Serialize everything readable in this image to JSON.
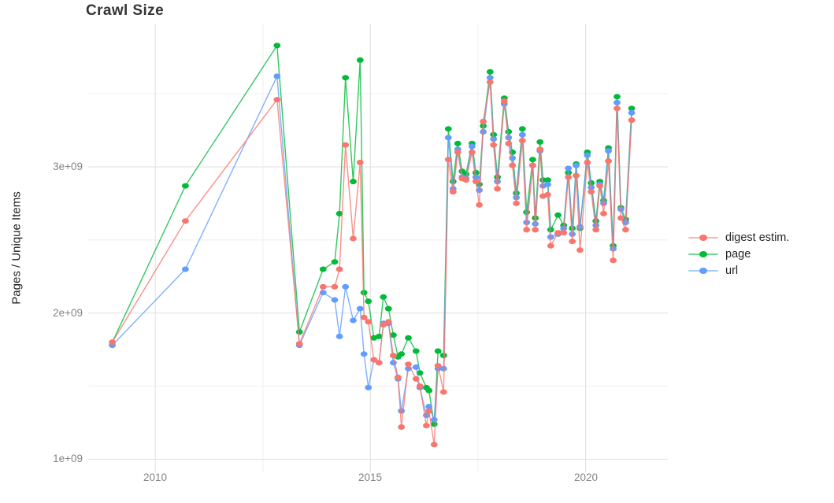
{
  "title": "Crawl Size",
  "axes": {
    "y_label": "Pages / Unique Items",
    "y_ticks": [
      "3e+09",
      "2e+09",
      "1e+09"
    ],
    "x_ticks": [
      "2010",
      "2015",
      "2020"
    ]
  },
  "legend": {
    "items": [
      {
        "label": "digest estim.",
        "color": "#F8766D",
        "key": "digest"
      },
      {
        "label": "page",
        "color": "#00BA38",
        "key": "page"
      },
      {
        "label": "url",
        "color": "#619CFF",
        "key": "url"
      }
    ]
  },
  "chart_data": {
    "type": "line",
    "title": "Crawl Size",
    "xlabel": "",
    "ylabel": "Pages / Unique Items",
    "value_unit": "1e9 items (billions)",
    "x_unit": "year (decimal, one entry per crawl)",
    "x_range": [
      2008.45,
      2021.9
    ],
    "y_range_e9": [
      0.9,
      3.98
    ],
    "x_ticks_years": [
      2010,
      2015,
      2020
    ],
    "x_minor_years": [
      2012.5,
      2017.5
    ],
    "y_ticks_e9": [
      3,
      2,
      1
    ],
    "y_minor_e9": [
      3.5,
      2.5,
      1.5
    ],
    "grid": true,
    "legend_position": "right",
    "series_colors": {
      "digest": "#F8766D",
      "page": "#00BA38",
      "url": "#619CFF"
    },
    "draw_order": [
      "page",
      "url",
      "digest"
    ],
    "points": [
      {
        "year": 2009.0,
        "page": 1.8,
        "url": 1.78,
        "digest": 1.8
      },
      {
        "year": 2010.7,
        "page": 2.87,
        "url": 2.3,
        "digest": 2.63
      },
      {
        "year": 2012.83,
        "page": 3.83,
        "url": 3.62,
        "digest": 3.46
      },
      {
        "year": 2013.35,
        "page": 1.87,
        "url": 1.78,
        "digest": 1.79
      },
      {
        "year": 2013.9,
        "page": 2.3,
        "url": 2.14,
        "digest": 2.18
      },
      {
        "year": 2014.17,
        "page": 2.35,
        "url": 2.09,
        "digest": 2.18
      },
      {
        "year": 2014.28,
        "page": 2.68,
        "url": 1.84,
        "digest": 2.3
      },
      {
        "year": 2014.42,
        "page": 3.61,
        "url": 2.18,
        "digest": 3.15
      },
      {
        "year": 2014.6,
        "page": 2.9,
        "url": 1.95,
        "digest": 2.51
      },
      {
        "year": 2014.76,
        "page": 3.73,
        "url": 2.03,
        "digest": 3.03
      },
      {
        "year": 2014.85,
        "page": 2.14,
        "url": 1.72,
        "digest": 1.97
      },
      {
        "year": 2014.95,
        "page": 2.08,
        "url": 1.49,
        "digest": 1.94
      },
      {
        "year": 2015.08,
        "page": 1.83,
        "url": 1.68,
        "digest": 1.68
      },
      {
        "year": 2015.2,
        "page": 1.84,
        "url": 1.66,
        "digest": 1.66
      },
      {
        "year": 2015.3,
        "page": 2.11,
        "url": 1.93,
        "digest": 1.92
      },
      {
        "year": 2015.42,
        "page": 2.03,
        "url": 1.93,
        "digest": 1.94
      },
      {
        "year": 2015.53,
        "page": 1.85,
        "url": 1.66,
        "digest": 1.71
      },
      {
        "year": 2015.64,
        "page": 1.7,
        "url": 1.55,
        "digest": 1.56
      },
      {
        "year": 2015.72,
        "page": 1.72,
        "url": 1.33,
        "digest": 1.22
      },
      {
        "year": 2015.88,
        "page": 1.83,
        "url": 1.62,
        "digest": 1.65
      },
      {
        "year": 2016.06,
        "page": 1.74,
        "url": 1.63,
        "digest": 1.55
      },
      {
        "year": 2016.15,
        "page": 1.59,
        "url": 1.49,
        "digest": 1.5
      },
      {
        "year": 2016.3,
        "page": 1.49,
        "url": 1.3,
        "digest": 1.23
      },
      {
        "year": 2016.36,
        "page": 1.47,
        "url": 1.36,
        "digest": 1.33
      },
      {
        "year": 2016.48,
        "page": 1.24,
        "url": 1.27,
        "digest": 1.1
      },
      {
        "year": 2016.57,
        "page": 1.74,
        "url": 1.62,
        "digest": 1.64
      },
      {
        "year": 2016.7,
        "page": 1.71,
        "url": 1.62,
        "digest": 1.46
      },
      {
        "year": 2016.81,
        "page": 3.26,
        "url": 3.2,
        "digest": 3.05
      },
      {
        "year": 2016.92,
        "page": 2.9,
        "url": 2.85,
        "digest": 2.83
      },
      {
        "year": 2017.03,
        "page": 3.16,
        "url": 3.12,
        "digest": 3.1
      },
      {
        "year": 2017.13,
        "page": 2.97,
        "url": 2.93,
        "digest": 2.92
      },
      {
        "year": 2017.22,
        "page": 2.95,
        "url": 2.92,
        "digest": 2.91
      },
      {
        "year": 2017.36,
        "page": 3.16,
        "url": 3.14,
        "digest": 3.1
      },
      {
        "year": 2017.45,
        "page": 2.96,
        "url": 2.93,
        "digest": 2.9
      },
      {
        "year": 2017.53,
        "page": 2.88,
        "url": 2.84,
        "digest": 2.74
      },
      {
        "year": 2017.62,
        "page": 3.28,
        "url": 3.24,
        "digest": 3.31
      },
      {
        "year": 2017.78,
        "page": 3.65,
        "url": 3.61,
        "digest": 3.58
      },
      {
        "year": 2017.86,
        "page": 3.22,
        "url": 3.19,
        "digest": 3.15
      },
      {
        "year": 2017.95,
        "page": 2.93,
        "url": 2.9,
        "digest": 2.85
      },
      {
        "year": 2018.11,
        "page": 3.47,
        "url": 3.43,
        "digest": 3.45
      },
      {
        "year": 2018.21,
        "page": 3.24,
        "url": 3.2,
        "digest": 3.16
      },
      {
        "year": 2018.3,
        "page": 3.1,
        "url": 3.06,
        "digest": 3.01
      },
      {
        "year": 2018.39,
        "page": 2.82,
        "url": 2.79,
        "digest": 2.75
      },
      {
        "year": 2018.53,
        "page": 3.26,
        "url": 3.22,
        "digest": 3.18
      },
      {
        "year": 2018.63,
        "page": 2.69,
        "url": 2.62,
        "digest": 2.57
      },
      {
        "year": 2018.77,
        "page": 3.05,
        "url": 3.01,
        "digest": 3.01
      },
      {
        "year": 2018.83,
        "page": 2.65,
        "url": 2.61,
        "digest": 2.57
      },
      {
        "year": 2018.94,
        "page": 3.17,
        "url": 3.11,
        "digest": 3.12
      },
      {
        "year": 2019.01,
        "page": 2.91,
        "url": 2.87,
        "digest": 2.8
      },
      {
        "year": 2019.12,
        "page": 2.91,
        "url": 2.88,
        "digest": 2.81
      },
      {
        "year": 2019.19,
        "page": 2.57,
        "url": 2.52,
        "digest": 2.46
      },
      {
        "year": 2019.36,
        "page": 2.67,
        "url": 2.54,
        "digest": 2.55
      },
      {
        "year": 2019.49,
        "page": 2.6,
        "url": 2.58,
        "digest": 2.55
      },
      {
        "year": 2019.6,
        "page": 2.96,
        "url": 2.99,
        "digest": 2.93
      },
      {
        "year": 2019.69,
        "page": 2.58,
        "url": 2.54,
        "digest": 2.49
      },
      {
        "year": 2019.78,
        "page": 3.02,
        "url": 3.01,
        "digest": 2.94
      },
      {
        "year": 2019.87,
        "page": 2.58,
        "url": 2.59,
        "digest": 2.43
      },
      {
        "year": 2020.04,
        "page": 3.1,
        "url": 3.08,
        "digest": 3.03
      },
      {
        "year": 2020.13,
        "page": 2.89,
        "url": 2.86,
        "digest": 2.83
      },
      {
        "year": 2020.24,
        "page": 2.63,
        "url": 2.6,
        "digest": 2.57
      },
      {
        "year": 2020.33,
        "page": 2.9,
        "url": 2.88,
        "digest": 2.87
      },
      {
        "year": 2020.42,
        "page": 2.77,
        "url": 2.75,
        "digest": 2.68
      },
      {
        "year": 2020.53,
        "page": 3.13,
        "url": 3.11,
        "digest": 3.04
      },
      {
        "year": 2020.64,
        "page": 2.46,
        "url": 2.44,
        "digest": 2.36
      },
      {
        "year": 2020.73,
        "page": 3.48,
        "url": 3.44,
        "digest": 3.4
      },
      {
        "year": 2020.82,
        "page": 2.72,
        "url": 2.71,
        "digest": 2.65
      },
      {
        "year": 2020.93,
        "page": 2.64,
        "url": 2.62,
        "digest": 2.57
      },
      {
        "year": 2021.07,
        "page": 3.4,
        "url": 3.37,
        "digest": 3.32
      }
    ]
  }
}
